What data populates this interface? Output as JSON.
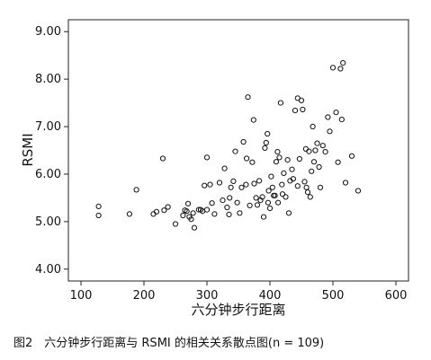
{
  "chart_data": {
    "type": "scatter",
    "xlabel": "六分钟步行距离",
    "ylabel": "RSMI",
    "xlim": [
      80,
      620
    ],
    "ylim": [
      3.75,
      9.25
    ],
    "x_ticks": [
      100,
      200,
      300,
      400,
      500,
      600
    ],
    "y_ticks": [
      4.0,
      5.0,
      6.0,
      7.0,
      8.0,
      9.0
    ],
    "x_tick_labels": [
      "100",
      "200",
      "300",
      "400",
      "500",
      "600"
    ],
    "y_tick_labels": [
      "4.00",
      "5.00",
      "6.00",
      "7.00",
      "8.00",
      "9.00"
    ],
    "grid": false,
    "marker": "open-circle",
    "caption": "图2　六分钟步行距离与 RSMI 的相关关系散点图(n = 109)",
    "points": [
      [
        128,
        5.32
      ],
      [
        128,
        5.13
      ],
      [
        177,
        5.16
      ],
      [
        188,
        5.67
      ],
      [
        215,
        5.16
      ],
      [
        220,
        5.21
      ],
      [
        230,
        6.33
      ],
      [
        232,
        5.24
      ],
      [
        238,
        5.31
      ],
      [
        250,
        4.95
      ],
      [
        262,
        5.13
      ],
      [
        265,
        5.24
      ],
      [
        268,
        5.22
      ],
      [
        270,
        5.38
      ],
      [
        272,
        5.1
      ],
      [
        275,
        5.05
      ],
      [
        278,
        5.18
      ],
      [
        280,
        4.87
      ],
      [
        287,
        5.25
      ],
      [
        290,
        5.25
      ],
      [
        293,
        5.22
      ],
      [
        296,
        5.76
      ],
      [
        300,
        5.25
      ],
      [
        300,
        6.35
      ],
      [
        305,
        5.78
      ],
      [
        308,
        5.39
      ],
      [
        312,
        5.16
      ],
      [
        320,
        5.82
      ],
      [
        325,
        5.45
      ],
      [
        328,
        6.12
      ],
      [
        332,
        5.3
      ],
      [
        335,
        5.15
      ],
      [
        336,
        5.5
      ],
      [
        338,
        5.72
      ],
      [
        342,
        5.85
      ],
      [
        345,
        6.48
      ],
      [
        348,
        5.4
      ],
      [
        352,
        5.18
      ],
      [
        355,
        5.72
      ],
      [
        358,
        6.68
      ],
      [
        362,
        5.78
      ],
      [
        363,
        6.33
      ],
      [
        365,
        7.62
      ],
      [
        368,
        5.34
      ],
      [
        372,
        6.25
      ],
      [
        374,
        7.14
      ],
      [
        375,
        5.8
      ],
      [
        378,
        5.5
      ],
      [
        380,
        5.35
      ],
      [
        383,
        5.86
      ],
      [
        385,
        5.45
      ],
      [
        388,
        5.52
      ],
      [
        390,
        5.1
      ],
      [
        392,
        6.55
      ],
      [
        394,
        6.66
      ],
      [
        396,
        6.85
      ],
      [
        397,
        5.4
      ],
      [
        398,
        5.65
      ],
      [
        400,
        5.28
      ],
      [
        402,
        5.95
      ],
      [
        404,
        5.72
      ],
      [
        406,
        5.55
      ],
      [
        408,
        5.55
      ],
      [
        410,
        6.26
      ],
      [
        412,
        6.47
      ],
      [
        413,
        5.4
      ],
      [
        415,
        6.35
      ],
      [
        417,
        7.5
      ],
      [
        419,
        5.78
      ],
      [
        420,
        5.58
      ],
      [
        422,
        6.02
      ],
      [
        425,
        5.52
      ],
      [
        428,
        6.3
      ],
      [
        430,
        5.18
      ],
      [
        432,
        5.86
      ],
      [
        435,
        6.1
      ],
      [
        437,
        5.9
      ],
      [
        440,
        7.34
      ],
      [
        444,
        5.75
      ],
      [
        447,
        6.32
      ],
      [
        450,
        7.55
      ],
      [
        452,
        7.36
      ],
      [
        455,
        5.84
      ],
      [
        457,
        6.53
      ],
      [
        458,
        5.72
      ],
      [
        460,
        5.62
      ],
      [
        462,
        6.48
      ],
      [
        464,
        5.52
      ],
      [
        466,
        6.06
      ],
      [
        468,
        7.0
      ],
      [
        470,
        6.26
      ],
      [
        472,
        6.5
      ],
      [
        475,
        6.65
      ],
      [
        478,
        6.15
      ],
      [
        480,
        5.72
      ],
      [
        484,
        6.6
      ],
      [
        488,
        6.47
      ],
      [
        492,
        7.2
      ],
      [
        495,
        6.9
      ],
      [
        500,
        8.24
      ],
      [
        505,
        7.3
      ],
      [
        508,
        6.25
      ],
      [
        512,
        8.22
      ],
      [
        514,
        7.15
      ],
      [
        516,
        8.34
      ],
      [
        520,
        5.82
      ],
      [
        530,
        6.38
      ],
      [
        540,
        5.65
      ],
      [
        444,
        7.6
      ]
    ]
  }
}
